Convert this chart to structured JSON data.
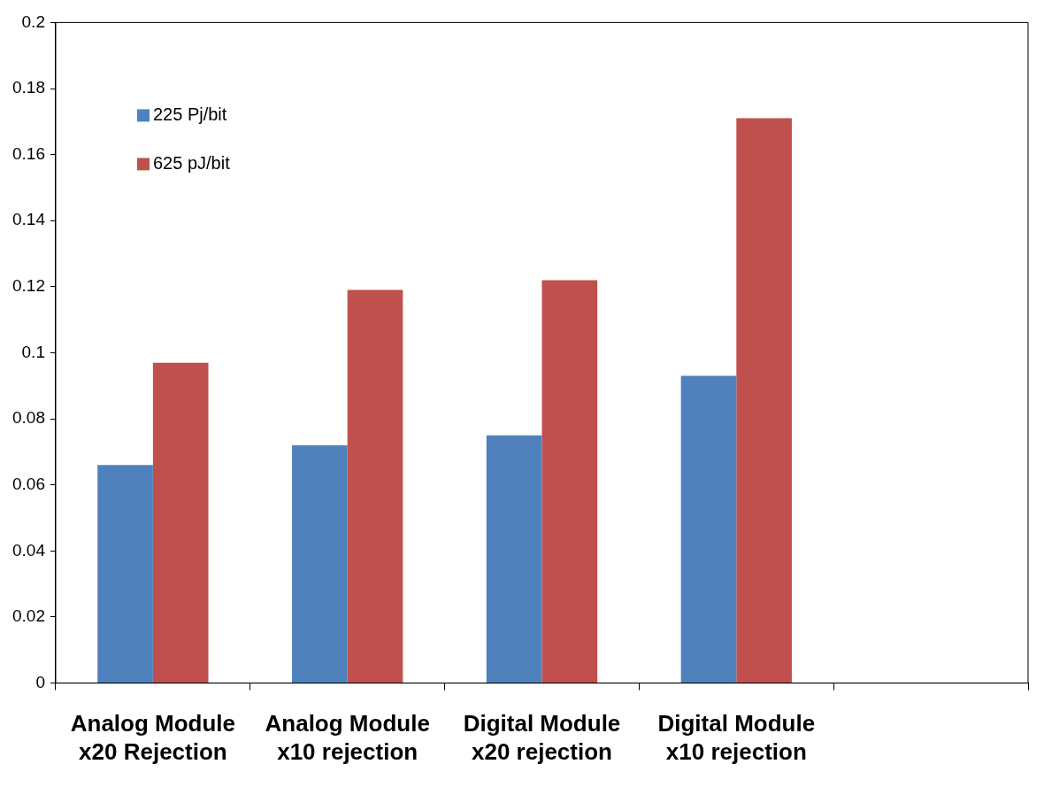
{
  "chart_data": {
    "type": "bar",
    "categories": [
      "Analog Module\nx20 Rejection",
      "Analog Module\nx10 rejection",
      "Digital Module\nx20 rejection",
      "Digital Module\nx10 rejection",
      null
    ],
    "series": [
      {
        "name": "225 Pj/bit",
        "color": "#4f81bd",
        "values": [
          0.066,
          0.072,
          0.075,
          0.093,
          null
        ]
      },
      {
        "name": "625 pJ/bit",
        "color": "#c0504d",
        "values": [
          0.097,
          0.119,
          0.122,
          0.171,
          null
        ]
      }
    ],
    "ylim": [
      0,
      0.2
    ],
    "yticks": [
      0,
      0.02,
      0.04,
      0.06,
      0.08,
      0.1,
      0.12,
      0.14,
      0.16,
      0.18,
      0.2
    ],
    "grid": false,
    "legend": "top left"
  }
}
